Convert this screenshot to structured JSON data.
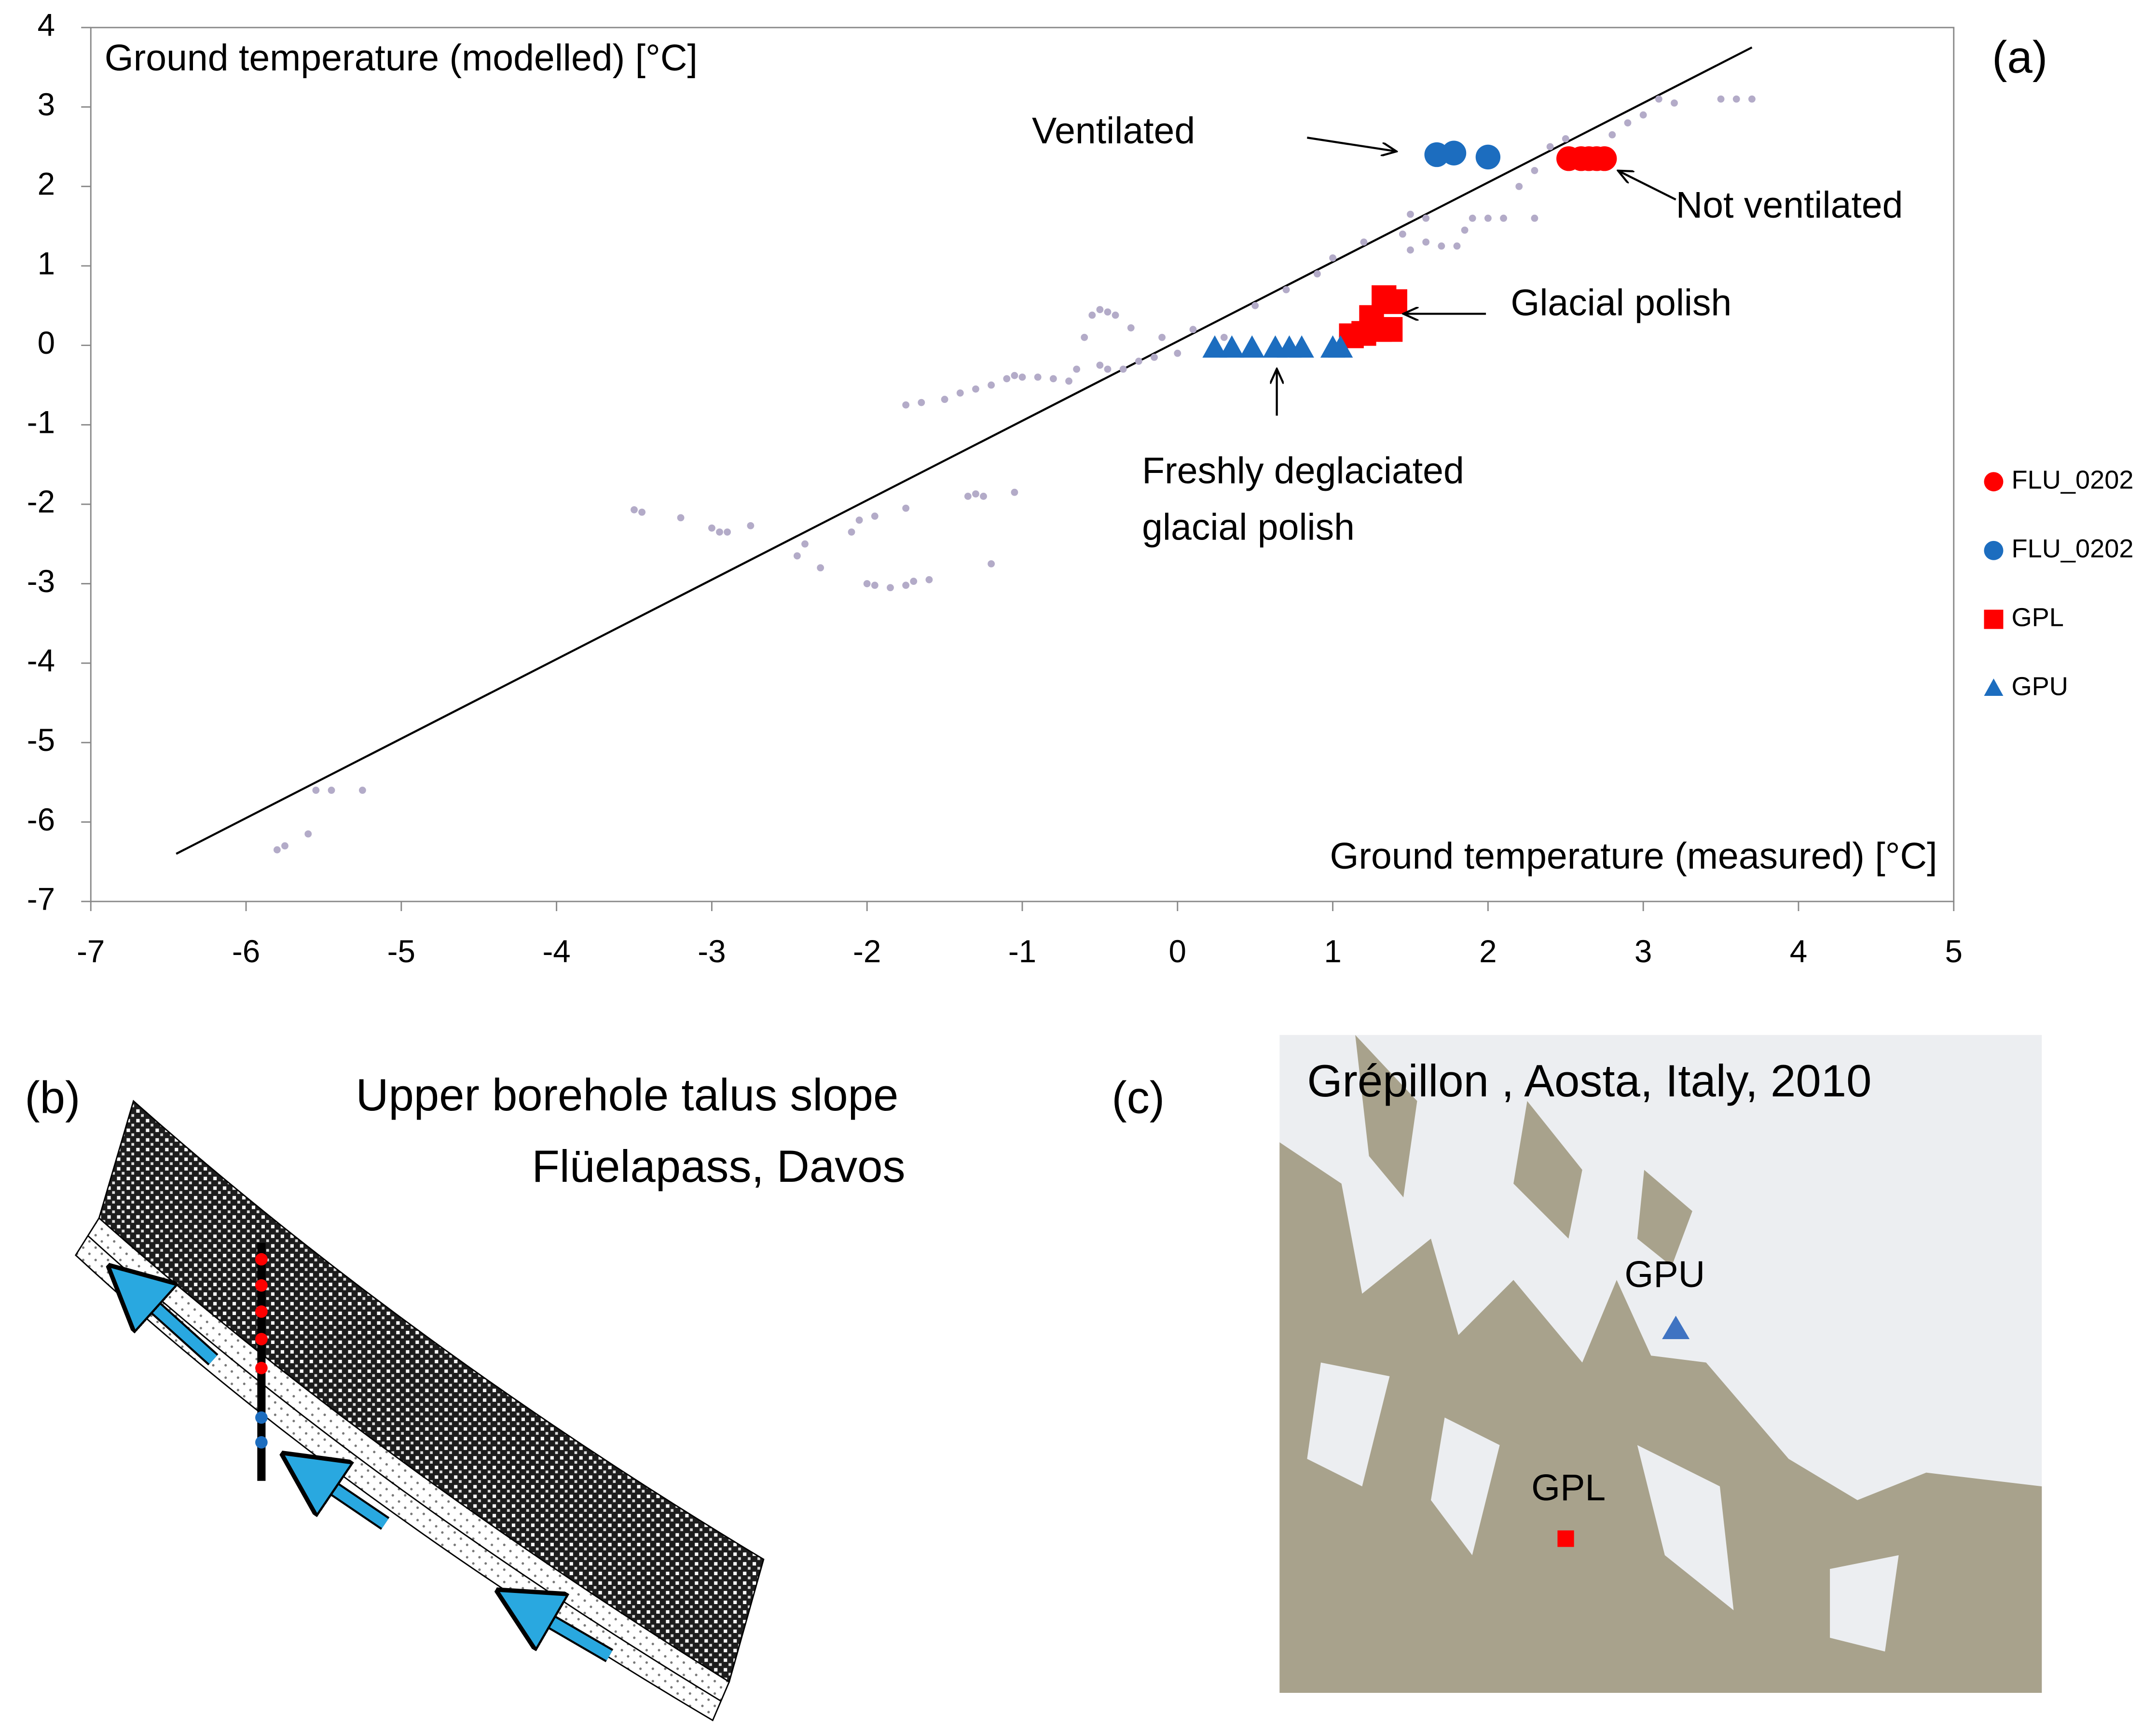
{
  "chart_data": {
    "type": "scatter",
    "panel_label": "(a)",
    "ylabel": "Ground temperature (modelled) [°C]",
    "xlabel": "Ground temperature (measured) [°C]",
    "xlim": [
      -7,
      5
    ],
    "xticks": [
      -7,
      -6,
      -5,
      -4,
      -3,
      -2,
      -1,
      0,
      1,
      2,
      3,
      4,
      5
    ],
    "ylim": [
      -7,
      4
    ],
    "yticks": [
      -7,
      -6,
      -5,
      -4,
      -3,
      -2,
      -1,
      0,
      1,
      2,
      3,
      4
    ],
    "reference_line": {
      "x": [
        -6.45,
        3.7
      ],
      "y": [
        -6.4,
        3.75
      ],
      "color": "#000000"
    },
    "series": [
      {
        "color": "#b3abc8",
        "marker": "circle",
        "size": 2.6,
        "x": [
          -5.8,
          -5.75,
          -5.6,
          -5.55,
          -5.45,
          -5.25,
          -3.5,
          -3.45,
          -3.2,
          -3,
          -2.95,
          -2.9,
          -2.75,
          -2.45,
          -2.4,
          -2.3,
          -2.1,
          -2.05,
          -2,
          -1.95,
          -1.85,
          -1.75,
          -1.7,
          -1.6,
          -1.35,
          -1.3,
          -1.25,
          -1.2,
          -1.05,
          -1.95,
          -1.75,
          -1.75,
          -1.65,
          -1.5,
          -1.4,
          -1.3,
          -1.2,
          -1.1,
          -1.05,
          -1.0,
          -0.9,
          -0.8,
          -0.7,
          -0.65,
          -0.6,
          -0.55,
          -0.5,
          -0.45,
          -0.4,
          -0.5,
          -0.45,
          -0.35,
          -0.25,
          -0.15,
          -0.1,
          0,
          -0.3,
          0.1,
          0.3,
          0.5,
          0.7,
          0.9,
          1.0,
          1.2,
          1.45,
          1.5,
          1.6,
          1.5,
          1.6,
          1.7,
          1.8,
          1.85,
          1.9,
          2.0,
          2.1,
          2.3,
          2.2,
          2.3,
          2.4,
          2.5,
          2.8,
          2.9,
          3.0,
          3.1,
          3.2,
          3.5,
          3.6,
          3.7
        ],
        "y": [
          -6.35,
          -6.3,
          -6.15,
          -5.6,
          -5.6,
          -5.6,
          -2.07,
          -2.1,
          -2.17,
          -2.3,
          -2.35,
          -2.35,
          -2.27,
          -2.65,
          -2.5,
          -2.8,
          -2.35,
          -2.2,
          -3,
          -3.02,
          -3.05,
          -3.02,
          -2.97,
          -2.95,
          -1.9,
          -1.87,
          -1.9,
          -2.75,
          -1.85,
          -2.15,
          -2.05,
          -0.75,
          -0.72,
          -0.68,
          -0.6,
          -0.55,
          -0.5,
          -0.42,
          -0.38,
          -0.4,
          -0.4,
          -0.42,
          -0.45,
          -0.3,
          0.1,
          0.38,
          0.45,
          0.42,
          0.38,
          -0.25,
          -0.3,
          -0.3,
          -0.2,
          -0.15,
          0.1,
          -0.1,
          0.22,
          0.2,
          0.1,
          0.5,
          0.7,
          0.9,
          1.1,
          1.3,
          1.4,
          1.65,
          1.6,
          1.2,
          1.3,
          1.25,
          1.25,
          1.45,
          1.6,
          1.6,
          1.6,
          1.6,
          2.0,
          2.2,
          2.5,
          2.6,
          2.65,
          2.8,
          2.9,
          3.1,
          3.05,
          3.1,
          3.1,
          3.1
        ]
      },
      {
        "name": "FLU_0202",
        "color": "#ff0000",
        "marker": "circle",
        "size": 9,
        "x": [
          2.52,
          2.6,
          2.65,
          2.7,
          2.75
        ],
        "y": [
          2.35,
          2.35,
          2.35,
          2.35,
          2.35
        ]
      },
      {
        "name": "FLU_0202",
        "color": "#1c6dbf",
        "marker": "circle",
        "size": 9,
        "x": [
          1.67,
          1.78,
          2.0
        ],
        "y": [
          2.4,
          2.42,
          2.37
        ]
      },
      {
        "name": "GPL",
        "color": "#ff0000",
        "marker": "square",
        "size": 9,
        "x": [
          1.12,
          1.2,
          1.25,
          1.3,
          1.33,
          1.4,
          1.37
        ],
        "y": [
          0.12,
          0.15,
          0.35,
          0.2,
          0.6,
          0.55,
          0.2
        ]
      },
      {
        "name": "GPU",
        "color": "#1c6dbf",
        "marker": "triangle",
        "size": 9,
        "x": [
          0.24,
          0.35,
          0.48,
          0.63,
          0.72,
          0.8,
          1.0,
          1.05
        ],
        "y": [
          -0.03,
          -0.03,
          -0.03,
          -0.03,
          -0.03,
          -0.03,
          -0.03,
          -0.03
        ]
      }
    ],
    "annotations": [
      {
        "text": [
          "Ventilated"
        ]
      },
      {
        "text": [
          "Not ventilated"
        ]
      },
      {
        "text": [
          "Glacial polish"
        ]
      },
      {
        "text": [
          "Freshly deglaciated",
          "glacial polish"
        ]
      }
    ]
  },
  "panel_b": {
    "label": "(b)",
    "title": [
      "Upper borehole talus slope",
      "Flüelapass, Davos"
    ]
  },
  "panel_c": {
    "label": "(c)",
    "title": "Grépillon , Aosta, Italy, 2010",
    "labels": [
      "GPU",
      "GPL"
    ]
  }
}
